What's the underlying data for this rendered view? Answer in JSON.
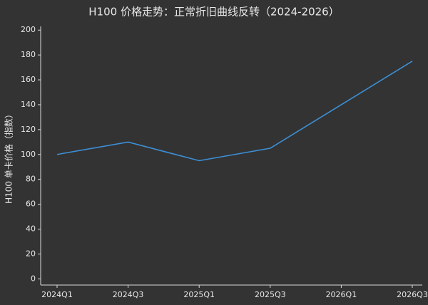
{
  "chart_data": {
    "type": "line",
    "title": "H100 价格走势：正常折旧曲线反转（2024-2026）",
    "y_label": "H100 单卡价格（指数）",
    "categories": [
      "2024Q1",
      "2024Q3",
      "2025Q1",
      "2025Q3",
      "2026Q1",
      "2026Q3"
    ],
    "series": [
      {
        "name": "H100",
        "color": "#3d8fd6",
        "values": [
          100,
          110,
          95,
          105,
          140,
          175
        ]
      }
    ],
    "ylim": [
      -5,
      203
    ],
    "yticks": [
      0,
      20,
      40,
      60,
      80,
      100,
      120,
      140,
      160,
      180,
      200
    ],
    "grid": false
  }
}
